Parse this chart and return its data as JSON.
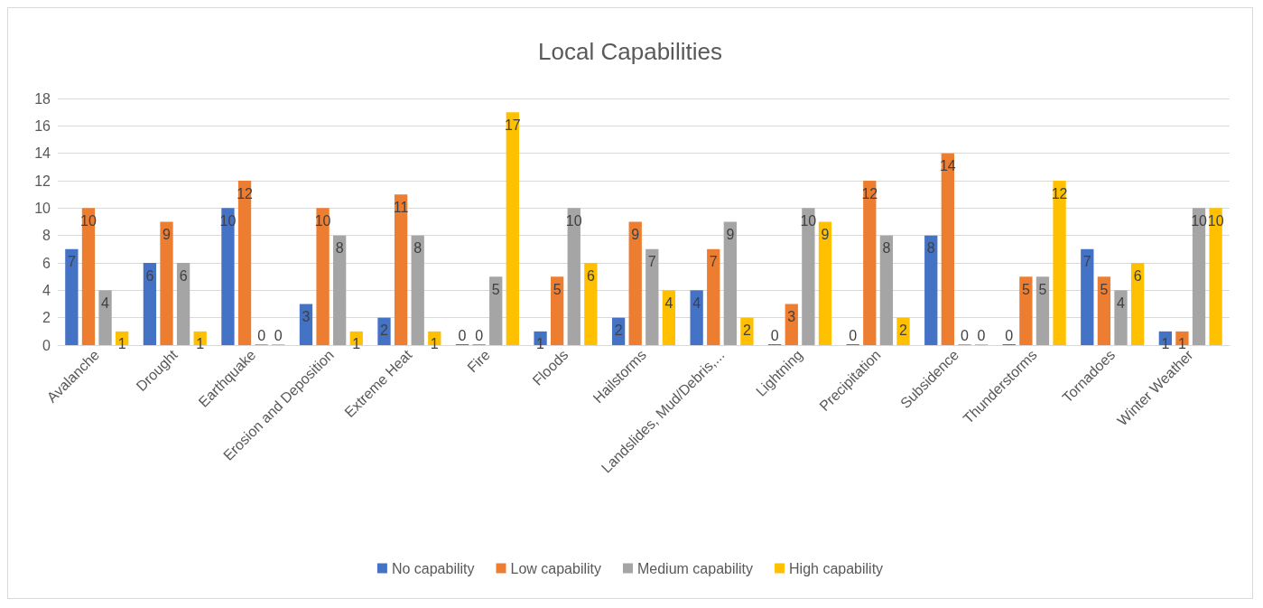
{
  "chart_data": {
    "type": "bar",
    "title": "Local Capabilities",
    "categories": [
      "Avalanche",
      "Drought",
      "Earthquake",
      "Erosion and Deposition",
      "Extreme Heat",
      "Fire",
      "Floods",
      "Hailstorms",
      "Landslides, Mud/Debris,...",
      "Lightning",
      "Precipitation",
      "Subsidence",
      "Thunderstorms",
      "Tornadoes",
      "Winter Weather"
    ],
    "series": [
      {
        "name": "No capability",
        "color": "#4472c4",
        "values": [
          7,
          6,
          10,
          3,
          2,
          0,
          1,
          2,
          4,
          0,
          0,
          8,
          0,
          7,
          1
        ]
      },
      {
        "name": "Low capability",
        "color": "#ed7d31",
        "values": [
          10,
          9,
          12,
          10,
          11,
          0,
          5,
          9,
          7,
          3,
          12,
          14,
          5,
          5,
          1
        ]
      },
      {
        "name": "Medium capability",
        "color": "#a5a5a5",
        "values": [
          4,
          6,
          0,
          8,
          8,
          5,
          10,
          7,
          9,
          10,
          8,
          0,
          5,
          4,
          10
        ]
      },
      {
        "name": "High capability",
        "color": "#ffc000",
        "values": [
          1,
          1,
          0,
          1,
          1,
          17,
          6,
          4,
          2,
          9,
          2,
          0,
          12,
          6,
          10
        ]
      }
    ],
    "ylim": [
      0,
      18
    ],
    "yticks": [
      0,
      2,
      4,
      6,
      8,
      10,
      12,
      14,
      16,
      18
    ],
    "grid": "y",
    "legend": "bottom",
    "data_labels": true
  }
}
